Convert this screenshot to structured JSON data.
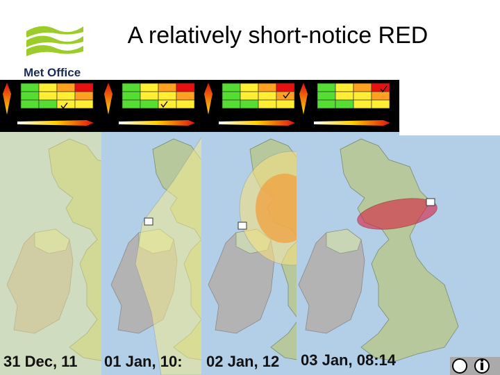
{
  "header": {
    "title": "A relatively short-notice RED",
    "logo": "Met Office"
  },
  "panels": [
    {
      "timestamp": "31 Dec, 11"
    },
    {
      "timestamp": "01 Jan, 10:"
    },
    {
      "timestamp": "02 Jan, 12"
    },
    {
      "timestamp": "03 Jan, 08:14"
    }
  ]
}
